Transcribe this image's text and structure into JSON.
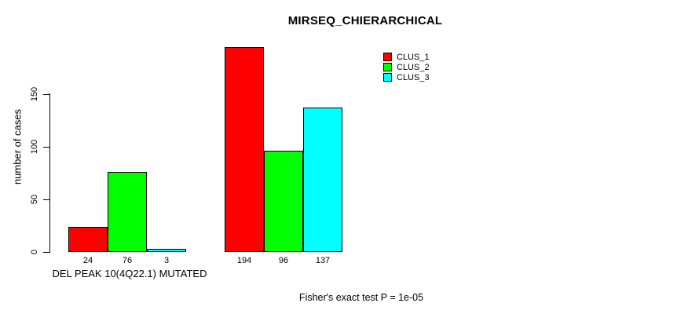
{
  "title": "MIRSEQ_CHIERARCHICAL",
  "y_axis": {
    "label": "number of cases"
  },
  "x_axis": {
    "label": "DEL PEAK 10(4Q22.1) MUTATED"
  },
  "footer": "Fisher's exact test P = 1e-05",
  "colors": {
    "clus_1": "#FF0000",
    "clus_2": "#00FF00",
    "clus_3": "#00FFFF",
    "axis": "#000000",
    "background": "#FFFFFF"
  },
  "chart_data": {
    "type": "bar",
    "title": "MIRSEQ_CHIERARCHICAL",
    "xlabel": "DEL PEAK 10(4Q22.1) MUTATED",
    "ylabel": "number of cases",
    "ylim": [
      0,
      200
    ],
    "yticks": [
      0,
      50,
      100,
      150
    ],
    "categories": [
      "DEL PEAK 10(4Q22.1) MUTATED",
      ""
    ],
    "series": [
      {
        "name": "CLUS_1",
        "color": "#FF0000",
        "values": [
          24,
          194
        ]
      },
      {
        "name": "CLUS_2",
        "color": "#00FF00",
        "values": [
          76,
          96
        ]
      },
      {
        "name": "CLUS_3",
        "color": "#00FFFF",
        "values": [
          3,
          137
        ]
      }
    ],
    "bar_value_labels": [
      [
        24,
        76,
        3
      ],
      [
        194,
        96,
        137
      ]
    ],
    "legend": {
      "position": "top-right",
      "entries": [
        "CLUS_1",
        "CLUS_2",
        "CLUS_3"
      ]
    },
    "annotation": "Fisher's exact test P = 1e-05",
    "grid": false,
    "bar_border_color": "#000000"
  }
}
